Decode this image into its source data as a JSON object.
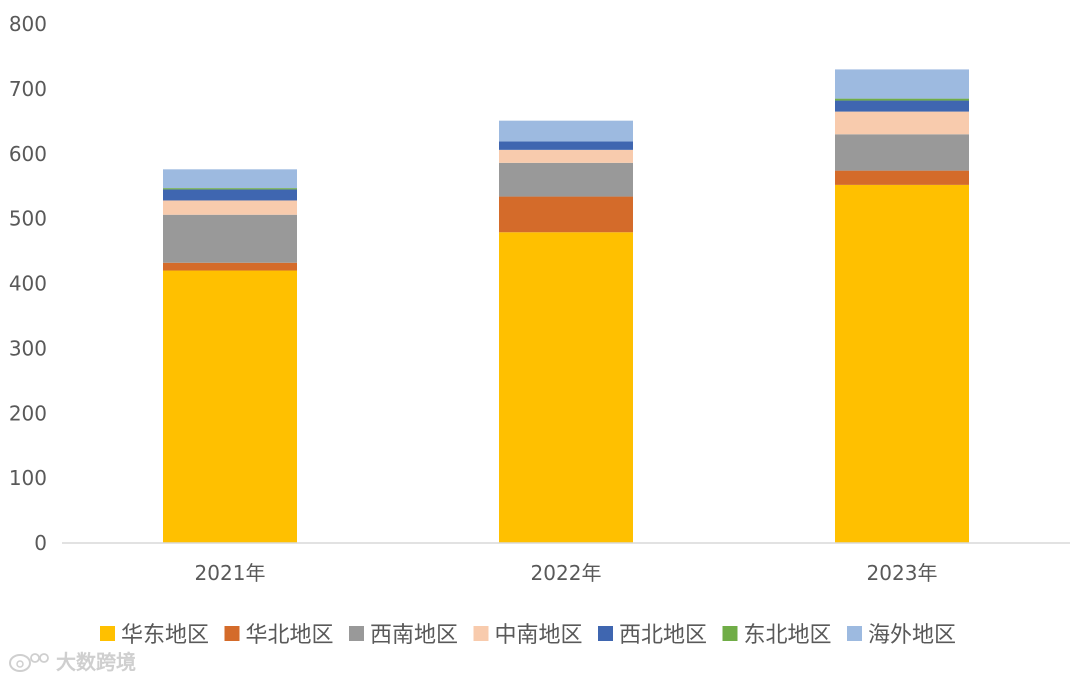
{
  "chart_data": {
    "type": "bar",
    "stacked": true,
    "categories": [
      "2021年",
      "2022年",
      "2023年"
    ],
    "series": [
      {
        "name": "华东地区",
        "color": "#FFC000",
        "values": [
          420,
          479,
          552
        ]
      },
      {
        "name": "华北地区",
        "color": "#D46B2A",
        "values": [
          12,
          55,
          22
        ]
      },
      {
        "name": "西南地区",
        "color": "#999999",
        "values": [
          74,
          52,
          56
        ]
      },
      {
        "name": "中南地区",
        "color": "#F8CBAD",
        "values": [
          22,
          20,
          35
        ]
      },
      {
        "name": "西北地区",
        "color": "#3F66B0",
        "values": [
          17,
          13,
          17
        ]
      },
      {
        "name": "东北地区",
        "color": "#70AD47",
        "values": [
          2,
          0,
          3
        ]
      },
      {
        "name": "海外地区",
        "color": "#9DBAE0",
        "values": [
          29,
          32,
          45
        ]
      }
    ],
    "yticks": [
      "0",
      "100",
      "200",
      "300",
      "400",
      "500",
      "600",
      "700",
      "800"
    ],
    "ylim": [
      0,
      800
    ],
    "grid": false,
    "legend": "bottom"
  },
  "watermark": {
    "text": "大数跨境",
    "icon": "weibo-logo-icon"
  }
}
